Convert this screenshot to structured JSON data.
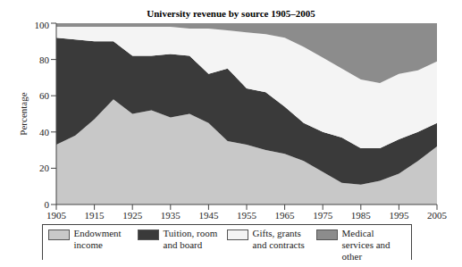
{
  "chart_data": {
    "type": "area",
    "title": "University revenue by source 1905–2005",
    "y_label": "Percentage",
    "stacked": true,
    "legend": "bottom",
    "grid": false,
    "x": [
      1905,
      1910,
      1915,
      1920,
      1925,
      1930,
      1935,
      1940,
      1945,
      1950,
      1955,
      1960,
      1965,
      1970,
      1975,
      1980,
      1985,
      1990,
      1995,
      2000,
      2005
    ],
    "xlim": [
      1905,
      2005
    ],
    "xticks": [
      1905,
      1915,
      1925,
      1935,
      1945,
      1955,
      1965,
      1975,
      1985,
      1995,
      2005
    ],
    "ylim": [
      0,
      100
    ],
    "yticks": [
      0,
      20,
      40,
      60,
      80,
      100
    ],
    "series": [
      {
        "name": "Endowment income",
        "color": "#c8c8c8",
        "values": [
          33,
          38,
          47,
          58,
          50,
          52,
          48,
          50,
          45,
          35,
          33,
          30,
          28,
          24,
          18,
          12,
          11,
          13,
          17,
          24,
          32
        ]
      },
      {
        "name": "Tuition, room and board",
        "color": "#3a3a3a",
        "values": [
          59,
          53,
          43,
          32,
          32,
          30,
          35,
          32,
          27,
          40,
          31,
          32,
          26,
          21,
          22,
          25,
          20,
          18,
          19,
          16,
          13
        ]
      },
      {
        "name": "Gifts, grants and contracts",
        "color": "#f4f4f4",
        "values": [
          6,
          7,
          8,
          8,
          16,
          16,
          15,
          15,
          25,
          21,
          31,
          32,
          38,
          42,
          41,
          38,
          38,
          36,
          36,
          34,
          34
        ]
      },
      {
        "name": "Medical services and other",
        "color": "#8c8c8c",
        "values": [
          2,
          2,
          2,
          2,
          2,
          2,
          2,
          3,
          3,
          4,
          5,
          6,
          8,
          13,
          19,
          25,
          31,
          33,
          28,
          26,
          21
        ]
      }
    ]
  }
}
